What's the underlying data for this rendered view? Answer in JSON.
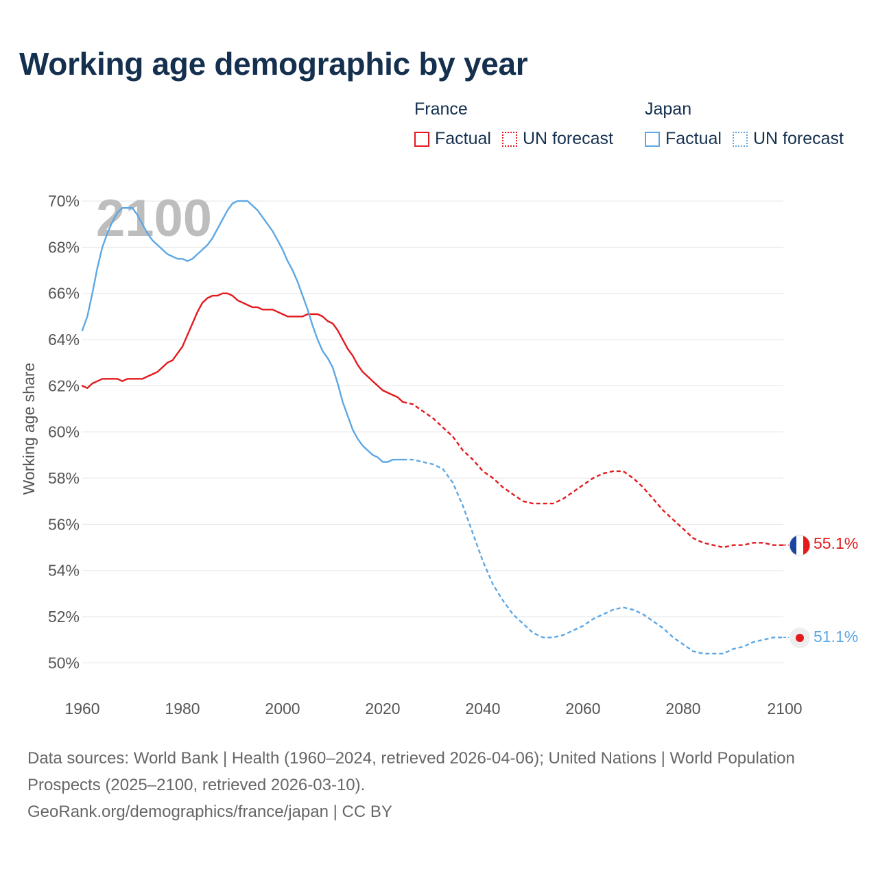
{
  "title": "Working age demographic by year",
  "legend": {
    "groups": [
      {
        "name": "France",
        "factual_label": "Factual",
        "forecast_label": "UN forecast",
        "color": "#e3191c"
      },
      {
        "name": "Japan",
        "factual_label": "Factual",
        "forecast_label": "UN forecast",
        "color": "#5da7e4"
      }
    ]
  },
  "footer": {
    "sources": "Data sources: World Bank | Health (1960–2024, retrieved 2026-04-06); United Nations | World Population Prospects (2025–2100, retrieved 2026-03-10).",
    "credit": "GeoRank.org/demographics/france/japan | CC BY"
  },
  "chart_data": {
    "type": "line",
    "title": "Working age demographic by year",
    "xlabel": "",
    "ylabel": "Working age share",
    "year_watermark": "2100",
    "xlim": [
      1960,
      2100
    ],
    "ylim": [
      49,
      70.3
    ],
    "x_ticks": [
      1960,
      1980,
      2000,
      2020,
      2040,
      2060,
      2080,
      2100
    ],
    "y_ticks": [
      50,
      52,
      54,
      56,
      58,
      60,
      62,
      64,
      66,
      68,
      70
    ],
    "y_tick_labels": [
      "50%",
      "52%",
      "54%",
      "56%",
      "58%",
      "60%",
      "62%",
      "64%",
      "66%",
      "68%",
      "70%"
    ],
    "grid": true,
    "forecast_start_year": 2024,
    "series": [
      {
        "name": "France",
        "color": "#e3191c",
        "end_label": "55.1%",
        "flag": "france",
        "points": [
          [
            1960,
            62.0
          ],
          [
            1961,
            61.9
          ],
          [
            1962,
            62.1
          ],
          [
            1963,
            62.2
          ],
          [
            1964,
            62.3
          ],
          [
            1965,
            62.3
          ],
          [
            1966,
            62.3
          ],
          [
            1967,
            62.3
          ],
          [
            1968,
            62.2
          ],
          [
            1969,
            62.3
          ],
          [
            1970,
            62.3
          ],
          [
            1971,
            62.3
          ],
          [
            1972,
            62.3
          ],
          [
            1973,
            62.4
          ],
          [
            1974,
            62.5
          ],
          [
            1975,
            62.6
          ],
          [
            1976,
            62.8
          ],
          [
            1977,
            63.0
          ],
          [
            1978,
            63.1
          ],
          [
            1979,
            63.4
          ],
          [
            1980,
            63.7
          ],
          [
            1981,
            64.2
          ],
          [
            1982,
            64.7
          ],
          [
            1983,
            65.2
          ],
          [
            1984,
            65.6
          ],
          [
            1985,
            65.8
          ],
          [
            1986,
            65.9
          ],
          [
            1987,
            65.9
          ],
          [
            1988,
            66.0
          ],
          [
            1989,
            66.0
          ],
          [
            1990,
            65.9
          ],
          [
            1991,
            65.7
          ],
          [
            1992,
            65.6
          ],
          [
            1993,
            65.5
          ],
          [
            1994,
            65.4
          ],
          [
            1995,
            65.4
          ],
          [
            1996,
            65.3
          ],
          [
            1997,
            65.3
          ],
          [
            1998,
            65.3
          ],
          [
            1999,
            65.2
          ],
          [
            2000,
            65.1
          ],
          [
            2001,
            65.0
          ],
          [
            2002,
            65.0
          ],
          [
            2003,
            65.0
          ],
          [
            2004,
            65.0
          ],
          [
            2005,
            65.1
          ],
          [
            2006,
            65.1
          ],
          [
            2007,
            65.1
          ],
          [
            2008,
            65.0
          ],
          [
            2009,
            64.8
          ],
          [
            2010,
            64.7
          ],
          [
            2011,
            64.4
          ],
          [
            2012,
            64.0
          ],
          [
            2013,
            63.6
          ],
          [
            2014,
            63.3
          ],
          [
            2015,
            62.9
          ],
          [
            2016,
            62.6
          ],
          [
            2017,
            62.4
          ],
          [
            2018,
            62.2
          ],
          [
            2019,
            62.0
          ],
          [
            2020,
            61.8
          ],
          [
            2021,
            61.7
          ],
          [
            2022,
            61.6
          ],
          [
            2023,
            61.5
          ],
          [
            2024,
            61.3
          ],
          [
            2026,
            61.2
          ],
          [
            2028,
            60.9
          ],
          [
            2030,
            60.6
          ],
          [
            2032,
            60.2
          ],
          [
            2034,
            59.8
          ],
          [
            2036,
            59.2
          ],
          [
            2038,
            58.8
          ],
          [
            2040,
            58.3
          ],
          [
            2042,
            58.0
          ],
          [
            2044,
            57.6
          ],
          [
            2046,
            57.3
          ],
          [
            2048,
            57.0
          ],
          [
            2050,
            56.9
          ],
          [
            2052,
            56.9
          ],
          [
            2054,
            56.9
          ],
          [
            2056,
            57.1
          ],
          [
            2058,
            57.4
          ],
          [
            2060,
            57.7
          ],
          [
            2062,
            58.0
          ],
          [
            2064,
            58.2
          ],
          [
            2066,
            58.3
          ],
          [
            2068,
            58.3
          ],
          [
            2070,
            58.0
          ],
          [
            2072,
            57.6
          ],
          [
            2074,
            57.1
          ],
          [
            2076,
            56.6
          ],
          [
            2078,
            56.2
          ],
          [
            2080,
            55.8
          ],
          [
            2082,
            55.4
          ],
          [
            2084,
            55.2
          ],
          [
            2086,
            55.1
          ],
          [
            2088,
            55.0
          ],
          [
            2090,
            55.1
          ],
          [
            2092,
            55.1
          ],
          [
            2094,
            55.2
          ],
          [
            2096,
            55.2
          ],
          [
            2098,
            55.1
          ],
          [
            2100,
            55.1
          ]
        ]
      },
      {
        "name": "Japan",
        "color": "#5da7e4",
        "end_label": "51.1%",
        "flag": "japan",
        "points": [
          [
            1960,
            64.4
          ],
          [
            1961,
            65.0
          ],
          [
            1962,
            66.0
          ],
          [
            1963,
            67.1
          ],
          [
            1964,
            68.0
          ],
          [
            1965,
            68.6
          ],
          [
            1966,
            69.1
          ],
          [
            1967,
            69.5
          ],
          [
            1968,
            69.7
          ],
          [
            1969,
            69.7
          ],
          [
            1970,
            69.7
          ],
          [
            1971,
            69.4
          ],
          [
            1972,
            69.0
          ],
          [
            1973,
            68.6
          ],
          [
            1974,
            68.3
          ],
          [
            1975,
            68.1
          ],
          [
            1976,
            67.9
          ],
          [
            1977,
            67.7
          ],
          [
            1978,
            67.6
          ],
          [
            1979,
            67.5
          ],
          [
            1980,
            67.5
          ],
          [
            1981,
            67.4
          ],
          [
            1982,
            67.5
          ],
          [
            1983,
            67.7
          ],
          [
            1984,
            67.9
          ],
          [
            1985,
            68.1
          ],
          [
            1986,
            68.4
          ],
          [
            1987,
            68.8
          ],
          [
            1988,
            69.2
          ],
          [
            1989,
            69.6
          ],
          [
            1990,
            69.9
          ],
          [
            1991,
            70.0
          ],
          [
            1992,
            70.0
          ],
          [
            1993,
            70.0
          ],
          [
            1994,
            69.8
          ],
          [
            1995,
            69.6
          ],
          [
            1996,
            69.3
          ],
          [
            1997,
            69.0
          ],
          [
            1998,
            68.7
          ],
          [
            1999,
            68.3
          ],
          [
            2000,
            67.9
          ],
          [
            2001,
            67.4
          ],
          [
            2002,
            67.0
          ],
          [
            2003,
            66.5
          ],
          [
            2004,
            65.9
          ],
          [
            2005,
            65.3
          ],
          [
            2006,
            64.6
          ],
          [
            2007,
            64.0
          ],
          [
            2008,
            63.5
          ],
          [
            2009,
            63.2
          ],
          [
            2010,
            62.8
          ],
          [
            2011,
            62.1
          ],
          [
            2012,
            61.3
          ],
          [
            2013,
            60.7
          ],
          [
            2014,
            60.1
          ],
          [
            2015,
            59.7
          ],
          [
            2016,
            59.4
          ],
          [
            2017,
            59.2
          ],
          [
            2018,
            59.0
          ],
          [
            2019,
            58.9
          ],
          [
            2020,
            58.7
          ],
          [
            2021,
            58.7
          ],
          [
            2022,
            58.8
          ],
          [
            2023,
            58.8
          ],
          [
            2024,
            58.8
          ],
          [
            2026,
            58.8
          ],
          [
            2028,
            58.7
          ],
          [
            2030,
            58.6
          ],
          [
            2032,
            58.4
          ],
          [
            2034,
            57.8
          ],
          [
            2036,
            56.8
          ],
          [
            2038,
            55.6
          ],
          [
            2040,
            54.4
          ],
          [
            2042,
            53.4
          ],
          [
            2044,
            52.7
          ],
          [
            2046,
            52.1
          ],
          [
            2048,
            51.7
          ],
          [
            2050,
            51.3
          ],
          [
            2052,
            51.1
          ],
          [
            2054,
            51.1
          ],
          [
            2056,
            51.2
          ],
          [
            2058,
            51.4
          ],
          [
            2060,
            51.6
          ],
          [
            2062,
            51.9
          ],
          [
            2064,
            52.1
          ],
          [
            2066,
            52.3
          ],
          [
            2068,
            52.4
          ],
          [
            2070,
            52.3
          ],
          [
            2072,
            52.1
          ],
          [
            2074,
            51.8
          ],
          [
            2076,
            51.5
          ],
          [
            2078,
            51.1
          ],
          [
            2080,
            50.8
          ],
          [
            2082,
            50.5
          ],
          [
            2084,
            50.4
          ],
          [
            2086,
            50.4
          ],
          [
            2088,
            50.4
          ],
          [
            2090,
            50.6
          ],
          [
            2092,
            50.7
          ],
          [
            2094,
            50.9
          ],
          [
            2096,
            51.0
          ],
          [
            2098,
            51.1
          ],
          [
            2100,
            51.1
          ]
        ]
      }
    ]
  }
}
